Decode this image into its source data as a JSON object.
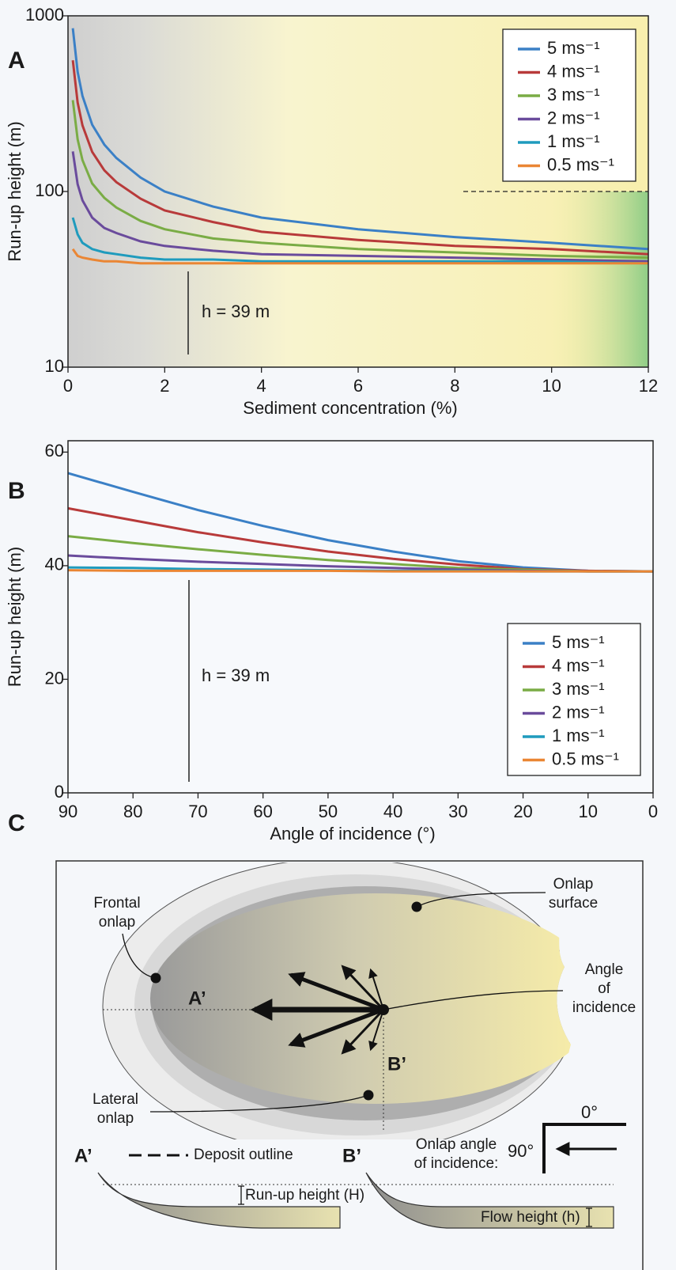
{
  "chart_data": [
    {
      "type": "line",
      "panel": "A",
      "x_label": "Sediment concentration (%)",
      "y_label": "Run-up height (m)",
      "log_y": true,
      "xlim": [
        0,
        12
      ],
      "ylim": [
        10,
        1000
      ],
      "xticks": [
        0,
        2,
        4,
        6,
        8,
        10,
        12
      ],
      "yticks": [
        10,
        100,
        1000
      ],
      "legend": "upper right",
      "annotation": "h = 39 m",
      "x": [
        0.1,
        0.2,
        0.3,
        0.5,
        0.75,
        1,
        1.5,
        2,
        3,
        4,
        6,
        8,
        10,
        12
      ],
      "series": [
        {
          "name": "5 ms⁻¹",
          "color": "#3b80c6",
          "values": [
            850,
            480,
            350,
            240,
            185,
            155,
            120,
            100,
            82,
            71,
            61,
            55,
            51,
            47
          ]
        },
        {
          "name": "4 ms⁻¹",
          "color": "#b83a3a",
          "values": [
            558,
            321,
            238,
            168,
            132,
            113,
            91,
            78,
            67,
            59,
            53,
            49,
            47,
            44
          ]
        },
        {
          "name": "3 ms⁻¹",
          "color": "#7aac45",
          "values": [
            331,
            198,
            151,
            111,
            92,
            81,
            68,
            61,
            54,
            51,
            47,
            45,
            43,
            42
          ]
        },
        {
          "name": "2 ms⁻¹",
          "color": "#6a4b9c",
          "values": [
            169,
            110,
            89,
            71,
            62,
            58,
            52,
            49,
            46,
            44,
            43,
            42,
            41,
            40
          ]
        },
        {
          "name": "1 ms⁻¹",
          "color": "#1f9bbd",
          "values": [
            71,
            57,
            51,
            47,
            45,
            44,
            42,
            41,
            41,
            40,
            40,
            40,
            40,
            39
          ]
        },
        {
          "name": "0.5 ms⁻¹",
          "color": "#ea8634",
          "values": [
            47,
            43,
            42,
            41,
            40,
            40,
            39,
            39,
            39,
            39,
            39,
            39,
            39,
            39
          ]
        }
      ]
    },
    {
      "type": "line",
      "panel": "B",
      "x_label": "Angle of incidence (°)",
      "y_label": "Run-up height (m)",
      "xlim": [
        90,
        0
      ],
      "ylim": [
        0,
        62
      ],
      "xticks": [
        90,
        80,
        70,
        60,
        50,
        40,
        30,
        20,
        10,
        0
      ],
      "yticks": [
        0,
        20,
        40,
        60
      ],
      "legend": "lower right",
      "annotation": "h = 39 m",
      "x": [
        90,
        80,
        70,
        60,
        50,
        40,
        30,
        20,
        10,
        0
      ],
      "series": [
        {
          "name": "5 ms⁻¹",
          "color": "#3b80c6",
          "values": [
            56.3,
            53,
            49.8,
            47,
            44.5,
            42.5,
            40.8,
            39.7,
            39.1,
            39
          ]
        },
        {
          "name": "4 ms⁻¹",
          "color": "#b83a3a",
          "values": [
            50.1,
            48,
            45.9,
            44.1,
            42.5,
            41.2,
            40.2,
            39.4,
            39.1,
            39
          ]
        },
        {
          "name": "3 ms⁻¹",
          "color": "#7aac45",
          "values": [
            45.2,
            44,
            42.9,
            41.9,
            41,
            40.3,
            39.6,
            39.3,
            39,
            39
          ]
        },
        {
          "name": "2 ms⁻¹",
          "color": "#6a4b9c",
          "values": [
            41.8,
            41.2,
            40.7,
            40.3,
            39.9,
            39.6,
            39.3,
            39.1,
            39,
            39
          ]
        },
        {
          "name": "1 ms⁻¹",
          "color": "#1f9bbd",
          "values": [
            39.7,
            39.6,
            39.4,
            39.3,
            39.2,
            39.1,
            39.1,
            39,
            39,
            39
          ]
        },
        {
          "name": "0.5 ms⁻¹",
          "color": "#ea8634",
          "values": [
            39.2,
            39.1,
            39.1,
            39.1,
            39.1,
            39,
            39,
            39,
            39,
            39
          ]
        }
      ]
    }
  ],
  "diagram": {
    "panel": "C",
    "callouts": {
      "frontal_onlap": [
        "Frontal",
        "onlap"
      ],
      "onlap_surface": [
        "Onlap",
        "surface"
      ],
      "angle_of_incidence": [
        "Angle",
        "of",
        "incidence"
      ],
      "lateral_onlap": [
        "Lateral",
        "onlap"
      ]
    },
    "plan_a": "A’",
    "plan_b": "B’",
    "key": {
      "deposit_outline": "Deposit outline",
      "onlap_angle": [
        "Onlap angle",
        "of incidence:"
      ],
      "angle_90": "90°",
      "angle_0": "0°"
    },
    "cross_section": {
      "a": "A’",
      "b": "B’",
      "run_up_height": "Run-up height (H)",
      "flow_height": "Flow height (h)"
    }
  }
}
